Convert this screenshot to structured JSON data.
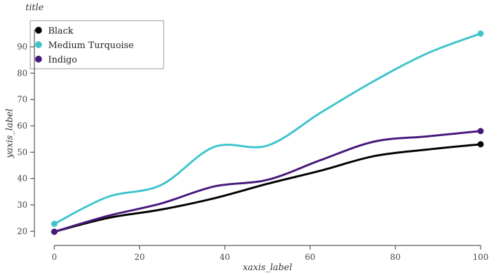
{
  "chart_data": {
    "type": "line",
    "title": "title",
    "xlabel": "xaxis_label",
    "ylabel": "yaxis_label",
    "xlim": [
      0,
      100
    ],
    "ylim": [
      18,
      96
    ],
    "xticks": [
      0,
      20,
      40,
      60,
      80,
      100
    ],
    "yticks": [
      20,
      30,
      40,
      50,
      60,
      70,
      80,
      90
    ],
    "grid": false,
    "legend": "top-left",
    "series": [
      {
        "name": "Black",
        "color": "#000000",
        "x": [
          0,
          12.5,
          25,
          37.5,
          50,
          62.5,
          75,
          87.5,
          100
        ],
        "y": [
          19.8,
          25.0,
          28.2,
          32.5,
          38.0,
          43.0,
          48.5,
          51.0,
          53.0
        ]
      },
      {
        "name": "Medium Turquoise",
        "color": "#40C4CC",
        "x": [
          0,
          12.5,
          25,
          37.5,
          50,
          62.5,
          75,
          87.5,
          100
        ],
        "y": [
          22.8,
          33.0,
          37.5,
          52.0,
          52.5,
          65.0,
          77.0,
          87.5,
          95.0
        ]
      },
      {
        "name": "Indigo",
        "color": "#48187A",
        "x": [
          0,
          12.5,
          25,
          37.5,
          50,
          62.5,
          75,
          87.5,
          100
        ],
        "y": [
          19.8,
          25.8,
          30.5,
          37.0,
          39.5,
          47.0,
          54.0,
          56.0,
          58.0
        ]
      }
    ]
  }
}
